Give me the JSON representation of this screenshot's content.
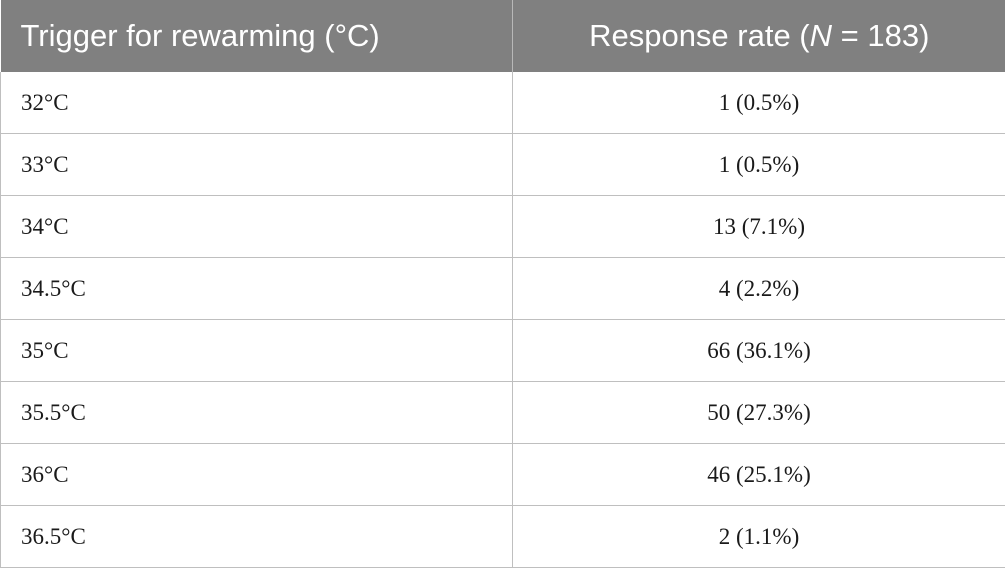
{
  "table": {
    "header": {
      "col1": "Trigger for rewarming (°C)",
      "col2_prefix": "Response rate (",
      "col2_italic": "N",
      "col2_suffix": " = 183)"
    },
    "rows": [
      {
        "trigger": "32°C",
        "response": "1 (0.5%)"
      },
      {
        "trigger": "33°C",
        "response": "1 (0.5%)"
      },
      {
        "trigger": "34°C",
        "response": "13 (7.1%)"
      },
      {
        "trigger": "34.5°C",
        "response": "4 (2.2%)"
      },
      {
        "trigger": "35°C",
        "response": "66 (36.1%)"
      },
      {
        "trigger": "35.5°C",
        "response": "50 (27.3%)"
      },
      {
        "trigger": "36°C",
        "response": "46 (25.1%)"
      },
      {
        "trigger": "36.5°C",
        "response": "2 (1.1%)"
      }
    ]
  }
}
